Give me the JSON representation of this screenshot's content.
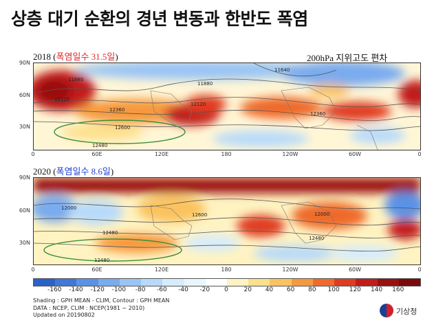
{
  "title": "상층 대기 순환의 경년 변동과 한반도 폭염",
  "subtitle": "200hPa 지위고도 편차",
  "panels": [
    {
      "year": "2018",
      "label_open": "(",
      "heat_label": "폭염일수 31.5일",
      "label_close": ")",
      "contours": [
        "11640",
        "11880",
        "12120",
        "12360",
        "12600",
        "12480",
        "11880",
        "12120",
        "12360"
      ]
    },
    {
      "year": "2020",
      "label_open": "(",
      "heat_label": "폭염일수 8.6일",
      "label_close": ")",
      "contours": [
        "12000",
        "12480",
        "12480",
        "12600",
        "12480",
        "12000"
      ]
    }
  ],
  "lat_ticks": [
    "90N",
    "60N",
    "30N"
  ],
  "lon_ticks": [
    "0",
    "60E",
    "120E",
    "180",
    "120W",
    "60W",
    "0"
  ],
  "colorbar": {
    "ticks": [
      "-160",
      "-140",
      "-120",
      "-100",
      "-80",
      "-60",
      "-40",
      "-20",
      "0",
      "20",
      "40",
      "60",
      "80",
      "100",
      "120",
      "140",
      "160"
    ],
    "colors": [
      "#2a62c9",
      "#3f78d9",
      "#5a92e6",
      "#79abef",
      "#9ac4f5",
      "#b8dafa",
      "#d6ecfd",
      "#eaf6fe",
      "#ffffff",
      "#fff3c2",
      "#fde08a",
      "#fbc25e",
      "#f6993e",
      "#ee6b2c",
      "#e03c22",
      "#c21c1a",
      "#9a0f10",
      "#7a0a0c"
    ]
  },
  "notes": {
    "line1": "Shading : GPH MEAN - CLIM, Contour : GPH MEAN",
    "line2": "DATA : NCEP, CLIM : NCEP(1981 ~ 2010)",
    "line3": "Updated on 20190802"
  },
  "logo_text": "기상청"
}
